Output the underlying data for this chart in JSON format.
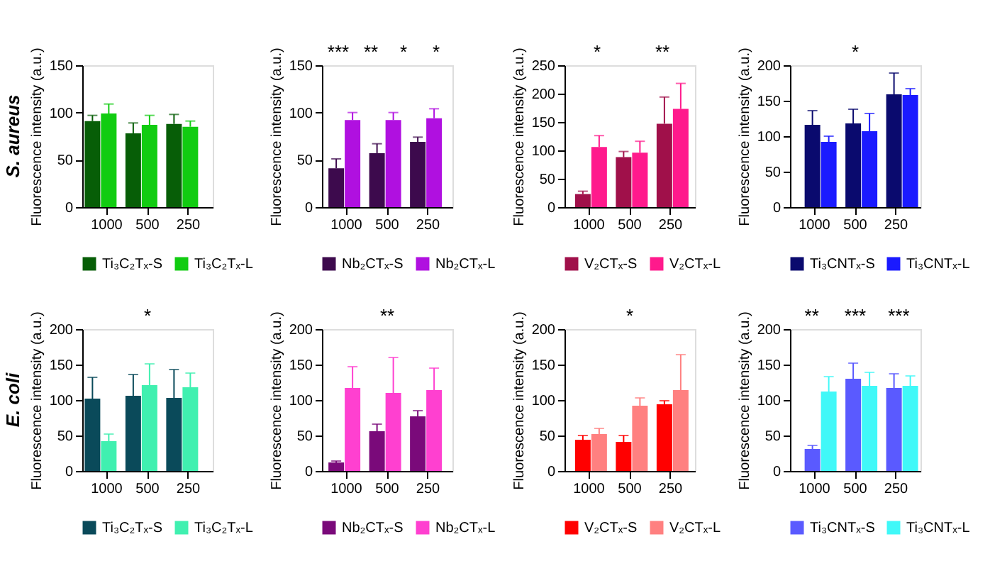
{
  "chart_data": [
    {
      "type": "bar",
      "title": "S. aureus",
      "ylabel": "Fluorescence intensity (a.u.)",
      "categories": [
        "1000",
        "500",
        "250"
      ],
      "ylim": [
        0,
        150
      ],
      "yticks": [
        0,
        50,
        100,
        150
      ],
      "legend": "bottom",
      "series": [
        {
          "name": "Ti₃C₂Tₓ-S",
          "color": "#075e07",
          "values": [
            91,
            78,
            88
          ],
          "errors": [
            [
              91,
              97
            ],
            [
              78,
              89
            ],
            [
              88,
              98
            ]
          ]
        },
        {
          "name": "Ti₃C₂Tₓ-L",
          "color": "#11cc11",
          "values": [
            99,
            87,
            85
          ],
          "errors": [
            [
              99,
              109
            ],
            [
              87,
              97
            ],
            [
              85,
              91
            ]
          ]
        }
      ]
    },
    {
      "type": "bar",
      "ylabel": "Fluorescence intensity (a.u.)",
      "categories": [
        "1000",
        "500",
        "250"
      ],
      "ylim": [
        0,
        150
      ],
      "yticks": [
        0,
        50,
        100,
        150
      ],
      "legend": "bottom",
      "annotations": [
        "***",
        "**",
        "*",
        "*"
      ],
      "series": [
        {
          "name": "Nb₂CTₓ-S",
          "color": "#3d0a4d",
          "values": [
            41,
            57,
            69
          ],
          "errors": [
            [
              41,
              51
            ],
            [
              57,
              67
            ],
            [
              69,
              74
            ]
          ]
        },
        {
          "name": "Nb₂CTₓ-L",
          "color": "#b010e0",
          "values": [
            92,
            92,
            94
          ],
          "errors": [
            [
              92,
              100
            ],
            [
              92,
              100
            ],
            [
              94,
              104
            ]
          ]
        }
      ]
    },
    {
      "type": "bar",
      "ylabel": "Fluorescence intensity (a.u.)",
      "categories": [
        "1000",
        "500",
        "250"
      ],
      "ylim": [
        0,
        250
      ],
      "yticks": [
        0,
        50,
        100,
        150,
        200,
        250
      ],
      "legend": "bottom",
      "annotations": [
        "*",
        "**"
      ],
      "series": [
        {
          "name": "V₂CTₓ-S",
          "color": "#a0104a",
          "values": [
            23,
            88,
            147
          ],
          "errors": [
            [
              23,
              28
            ],
            [
              88,
              98
            ],
            [
              147,
              194
            ]
          ]
        },
        {
          "name": "V₂CTₓ-L",
          "color": "#ff1a8c",
          "values": [
            106,
            96,
            173
          ],
          "errors": [
            [
              106,
              126
            ],
            [
              96,
              116
            ],
            [
              173,
              218
            ]
          ]
        }
      ]
    },
    {
      "type": "bar",
      "ylabel": "Fluorescence intensity (a.u.)",
      "categories": [
        "1000",
        "500",
        "250"
      ],
      "ylim": [
        0,
        200
      ],
      "yticks": [
        0,
        50,
        100,
        150,
        200
      ],
      "legend": "bottom",
      "annotations": [
        "*"
      ],
      "series": [
        {
          "name": "Ti₃CNTₓ-S",
          "color": "#0a0a6e",
          "values": [
            116,
            118,
            159
          ],
          "errors": [
            [
              116,
              136
            ],
            [
              118,
              138
            ],
            [
              159,
              189
            ]
          ]
        },
        {
          "name": "Ti₃CNTₓ-L",
          "color": "#1a1aff",
          "values": [
            92,
            107,
            158
          ],
          "errors": [
            [
              92,
              100
            ],
            [
              107,
              132
            ],
            [
              158,
              167
            ]
          ]
        }
      ]
    },
    {
      "type": "bar",
      "title": "E. coli",
      "ylabel": "Fluorescence intensity (a.u.)",
      "categories": [
        "1000",
        "500",
        "250"
      ],
      "ylim": [
        0,
        200
      ],
      "yticks": [
        0,
        50,
        100,
        150,
        200
      ],
      "legend": "bottom",
      "annotations": [
        "*"
      ],
      "series": [
        {
          "name": "Ti₃C₂Tₓ-S",
          "color": "#0a4a5a",
          "values": [
            102,
            106,
            103
          ],
          "errors": [
            [
              102,
              132
            ],
            [
              106,
              136
            ],
            [
              103,
              143
            ]
          ]
        },
        {
          "name": "Ti₃C₂Tₓ-L",
          "color": "#40f0b0",
          "values": [
            42,
            121,
            118
          ],
          "errors": [
            [
              42,
              52
            ],
            [
              121,
              151
            ],
            [
              118,
              138
            ]
          ]
        }
      ]
    },
    {
      "type": "bar",
      "ylabel": "Fluorescence intensity (a.u.)",
      "categories": [
        "1000",
        "500",
        "250"
      ],
      "ylim": [
        0,
        200
      ],
      "yticks": [
        0,
        50,
        100,
        150,
        200
      ],
      "legend": "bottom",
      "annotations": [
        "**"
      ],
      "series": [
        {
          "name": "Nb₂CTₓ-S",
          "color": "#7a0a7a",
          "values": [
            12,
            56,
            77
          ],
          "errors": [
            [
              12,
              14
            ],
            [
              56,
              66
            ],
            [
              77,
              85
            ]
          ]
        },
        {
          "name": "Nb₂CTₓ-L",
          "color": "#ff40d0",
          "values": [
            117,
            110,
            114
          ],
          "errors": [
            [
              117,
              147
            ],
            [
              110,
              160
            ],
            [
              114,
              145
            ]
          ]
        }
      ]
    },
    {
      "type": "bar",
      "ylabel": "Fluorescence intensity (a.u.)",
      "categories": [
        "1000",
        "500",
        "250"
      ],
      "ylim": [
        0,
        200
      ],
      "yticks": [
        0,
        50,
        100,
        150,
        200
      ],
      "legend": "bottom",
      "annotations": [
        "*"
      ],
      "series": [
        {
          "name": "V₂CTₓ-S",
          "color": "#ff0000",
          "values": [
            44,
            41,
            94
          ],
          "errors": [
            [
              44,
              50
            ],
            [
              41,
              50
            ],
            [
              94,
              99
            ]
          ]
        },
        {
          "name": "V₂CTₓ-L",
          "color": "#ff8080",
          "values": [
            52,
            92,
            114
          ],
          "errors": [
            [
              52,
              60
            ],
            [
              92,
              103
            ],
            [
              114,
              164
            ]
          ]
        }
      ]
    },
    {
      "type": "bar",
      "ylabel": "Fluorescence intensity (a.u.)",
      "categories": [
        "1000",
        "500",
        "250"
      ],
      "ylim": [
        0,
        200
      ],
      "yticks": [
        0,
        50,
        100,
        150,
        200
      ],
      "legend": "bottom",
      "annotations": [
        "**",
        "***",
        "***"
      ],
      "series": [
        {
          "name": "Ti₃CNTₓ-S",
          "color": "#5a5aff",
          "values": [
            31,
            130,
            117
          ],
          "errors": [
            [
              31,
              36
            ],
            [
              130,
              152
            ],
            [
              117,
              137
            ]
          ]
        },
        {
          "name": "Ti₃CNTₓ-L",
          "color": "#40f8f8",
          "values": [
            112,
            120,
            120
          ],
          "errors": [
            [
              112,
              133
            ],
            [
              120,
              139
            ],
            [
              120,
              134
            ]
          ]
        }
      ]
    }
  ]
}
